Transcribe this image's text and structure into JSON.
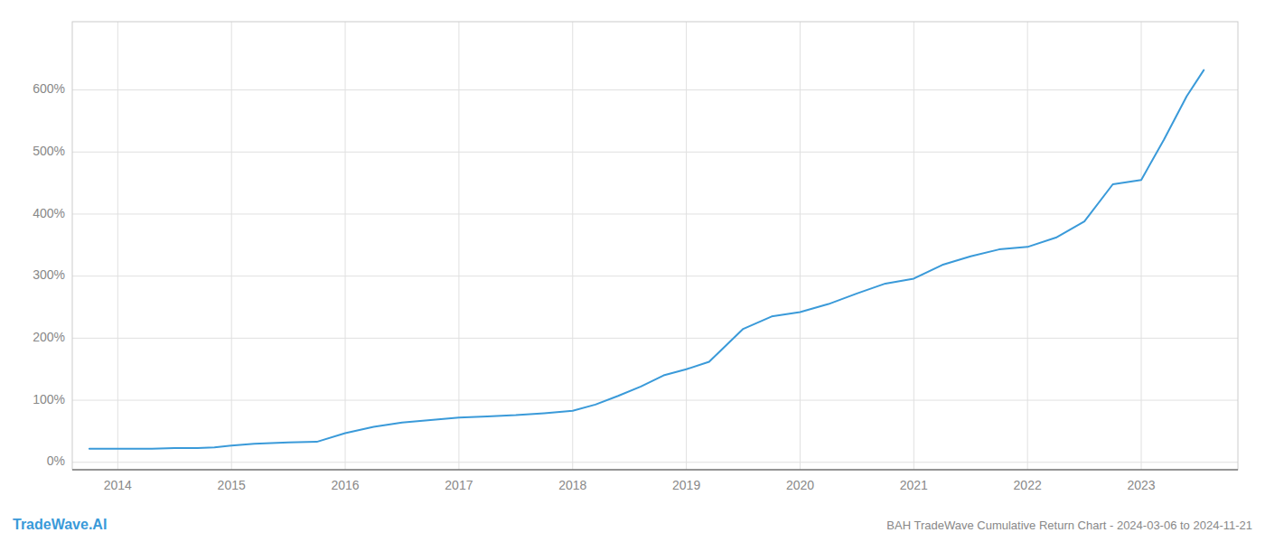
{
  "chart_data": {
    "type": "line",
    "title": "BAH TradeWave Cumulative Return Chart - 2024-03-06 to 2024-11-21",
    "annotations": [
      "TradeWave.AI"
    ],
    "color": "#3a9ad9",
    "grid": true,
    "x": [
      2013.75,
      2013.9,
      2014.0,
      2014.15,
      2014.3,
      2014.5,
      2014.7,
      2014.85,
      2015.0,
      2015.2,
      2015.5,
      2015.75,
      2016.0,
      2016.25,
      2016.5,
      2016.75,
      2017.0,
      2017.25,
      2017.5,
      2017.75,
      2018.0,
      2018.2,
      2018.4,
      2018.6,
      2018.8,
      2019.0,
      2019.2,
      2019.5,
      2019.75,
      2020.0,
      2020.25,
      2020.5,
      2020.75,
      2021.0,
      2021.25,
      2021.5,
      2021.75,
      2022.0,
      2022.25,
      2022.5,
      2022.75,
      2023.0,
      2023.2,
      2023.4,
      2023.55
    ],
    "values": [
      0.22,
      0.22,
      0.22,
      0.22,
      0.22,
      0.23,
      0.23,
      0.24,
      0.27,
      0.3,
      0.32,
      0.33,
      0.47,
      0.57,
      0.64,
      0.68,
      0.72,
      0.74,
      0.76,
      0.79,
      0.83,
      0.93,
      1.07,
      1.22,
      1.4,
      1.5,
      1.62,
      2.15,
      2.35,
      2.42,
      2.55,
      2.72,
      2.88,
      2.96,
      3.18,
      3.32,
      3.43,
      3.47,
      3.62,
      3.88,
      4.48,
      4.55,
      5.2,
      5.9,
      6.32
    ],
    "xlim": [
      2013.6,
      2023.85
    ],
    "xticks": [
      2014,
      2015,
      2016,
      2017,
      2018,
      2019,
      2020,
      2021,
      2022,
      2023
    ],
    "ylim": [
      -0.12,
      7.1
    ],
    "yticks": [
      {
        "value": 0,
        "label": "0%"
      },
      {
        "value": 1,
        "label": "100%"
      },
      {
        "value": 2,
        "label": "200%"
      },
      {
        "value": 3,
        "label": "300%"
      },
      {
        "value": 4,
        "label": "400%"
      },
      {
        "value": 5,
        "label": "500%"
      },
      {
        "value": 6,
        "label": "600%"
      }
    ]
  }
}
